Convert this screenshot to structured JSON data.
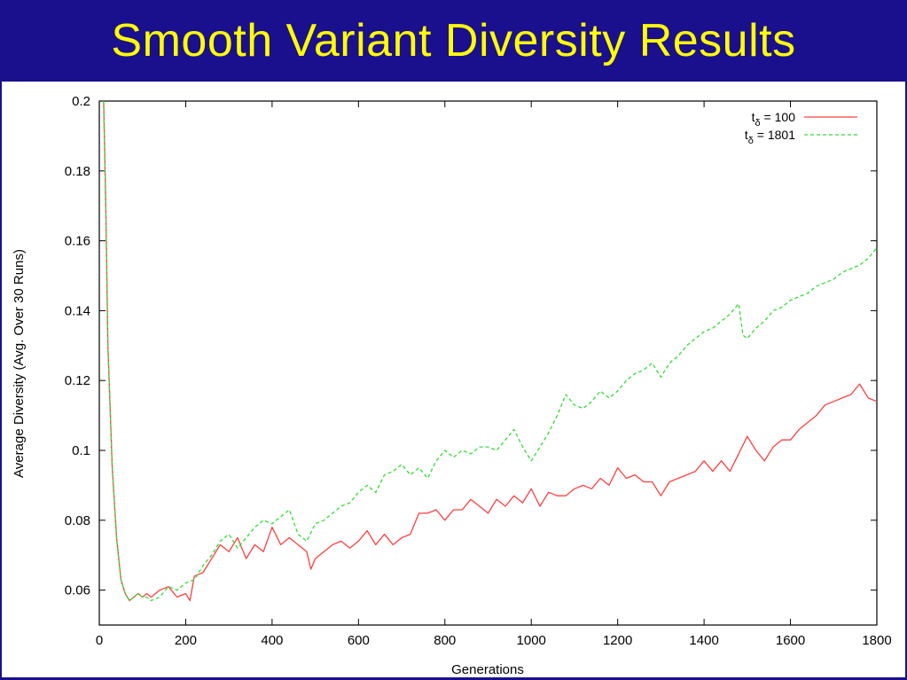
{
  "slide": {
    "title": "Smooth Variant Diversity Results"
  },
  "chart_data": {
    "type": "line",
    "title": "",
    "xlabel": "Generations",
    "ylabel": "Average Diversity (Avg. Over 30 Runs)",
    "xlim": [
      0,
      1800
    ],
    "ylim": [
      0.05,
      0.2
    ],
    "xticks": [
      0,
      200,
      400,
      600,
      800,
      1000,
      1200,
      1400,
      1600,
      1800
    ],
    "yticks": [
      0.06,
      0.08,
      0.1,
      0.12,
      0.14,
      0.16,
      0.18,
      0.2
    ],
    "ytick_labels": [
      "0.06",
      "0.08",
      "0.1",
      "0.12",
      "0.14",
      "0.16",
      "0.18",
      "0.2"
    ],
    "xtick_labels": [
      "0",
      "200",
      "400",
      "600",
      "800",
      "1000",
      "1200",
      "1400",
      "1600",
      "1800"
    ],
    "grid": false,
    "legend_position": "top-right",
    "series": [
      {
        "name": "t",
        "name_subscript": "δ",
        "name_suffix": " = 100",
        "color": "#ff4040",
        "dash": "solid",
        "x": [
          10,
          15,
          20,
          30,
          40,
          50,
          60,
          70,
          80,
          90,
          100,
          110,
          120,
          140,
          160,
          180,
          200,
          210,
          220,
          240,
          260,
          280,
          300,
          320,
          340,
          360,
          380,
          400,
          420,
          440,
          460,
          480,
          490,
          500,
          520,
          540,
          560,
          580,
          600,
          620,
          640,
          660,
          680,
          700,
          720,
          740,
          760,
          780,
          800,
          820,
          840,
          860,
          880,
          900,
          920,
          940,
          960,
          980,
          1000,
          1020,
          1040,
          1060,
          1080,
          1100,
          1120,
          1140,
          1160,
          1180,
          1200,
          1220,
          1240,
          1260,
          1280,
          1300,
          1320,
          1340,
          1360,
          1380,
          1400,
          1420,
          1440,
          1460,
          1480,
          1500,
          1520,
          1540,
          1560,
          1580,
          1600,
          1620,
          1640,
          1660,
          1680,
          1700,
          1720,
          1740,
          1760,
          1780,
          1800
        ],
        "y": [
          0.2,
          0.17,
          0.13,
          0.095,
          0.075,
          0.063,
          0.059,
          0.057,
          0.058,
          0.059,
          0.058,
          0.059,
          0.058,
          0.06,
          0.061,
          0.058,
          0.059,
          0.057,
          0.064,
          0.065,
          0.069,
          0.073,
          0.071,
          0.075,
          0.069,
          0.073,
          0.071,
          0.078,
          0.073,
          0.075,
          0.073,
          0.071,
          0.066,
          0.069,
          0.071,
          0.073,
          0.074,
          0.072,
          0.074,
          0.077,
          0.073,
          0.076,
          0.073,
          0.075,
          0.076,
          0.082,
          0.082,
          0.083,
          0.08,
          0.083,
          0.083,
          0.086,
          0.084,
          0.082,
          0.086,
          0.084,
          0.087,
          0.085,
          0.089,
          0.084,
          0.088,
          0.087,
          0.087,
          0.089,
          0.09,
          0.089,
          0.092,
          0.09,
          0.095,
          0.092,
          0.093,
          0.091,
          0.091,
          0.087,
          0.091,
          0.092,
          0.093,
          0.094,
          0.097,
          0.094,
          0.097,
          0.094,
          0.099,
          0.104,
          0.1,
          0.097,
          0.101,
          0.103,
          0.103,
          0.106,
          0.108,
          0.11,
          0.113,
          0.114,
          0.115,
          0.116,
          0.119,
          0.115,
          0.114
        ]
      },
      {
        "name": "t",
        "name_subscript": "δ",
        "name_suffix": " = 1801",
        "color": "#33dd33",
        "dash": "dashed",
        "x": [
          10,
          15,
          20,
          30,
          40,
          50,
          60,
          70,
          80,
          90,
          100,
          110,
          120,
          140,
          160,
          180,
          200,
          220,
          240,
          260,
          280,
          300,
          320,
          340,
          360,
          380,
          400,
          420,
          440,
          460,
          480,
          500,
          520,
          540,
          560,
          580,
          600,
          620,
          640,
          660,
          680,
          700,
          720,
          740,
          760,
          780,
          800,
          820,
          840,
          860,
          880,
          900,
          920,
          940,
          960,
          980,
          1000,
          1020,
          1040,
          1060,
          1080,
          1100,
          1120,
          1140,
          1160,
          1180,
          1200,
          1220,
          1240,
          1260,
          1280,
          1300,
          1320,
          1340,
          1360,
          1380,
          1400,
          1420,
          1440,
          1460,
          1480,
          1490,
          1500,
          1520,
          1540,
          1560,
          1580,
          1600,
          1620,
          1640,
          1660,
          1680,
          1700,
          1720,
          1740,
          1760,
          1780,
          1800
        ],
        "y": [
          0.2,
          0.17,
          0.13,
          0.095,
          0.075,
          0.063,
          0.059,
          0.057,
          0.058,
          0.059,
          0.058,
          0.058,
          0.057,
          0.058,
          0.061,
          0.06,
          0.062,
          0.063,
          0.067,
          0.07,
          0.074,
          0.076,
          0.072,
          0.075,
          0.078,
          0.08,
          0.079,
          0.081,
          0.083,
          0.076,
          0.074,
          0.079,
          0.08,
          0.082,
          0.084,
          0.085,
          0.088,
          0.09,
          0.088,
          0.093,
          0.094,
          0.096,
          0.093,
          0.095,
          0.092,
          0.097,
          0.1,
          0.098,
          0.1,
          0.099,
          0.101,
          0.101,
          0.1,
          0.103,
          0.106,
          0.101,
          0.097,
          0.101,
          0.105,
          0.11,
          0.116,
          0.113,
          0.112,
          0.114,
          0.117,
          0.115,
          0.117,
          0.12,
          0.122,
          0.123,
          0.125,
          0.121,
          0.125,
          0.127,
          0.13,
          0.132,
          0.134,
          0.135,
          0.137,
          0.139,
          0.142,
          0.133,
          0.132,
          0.135,
          0.137,
          0.14,
          0.141,
          0.143,
          0.144,
          0.145,
          0.147,
          0.148,
          0.149,
          0.151,
          0.152,
          0.153,
          0.155,
          0.158
        ]
      }
    ]
  }
}
